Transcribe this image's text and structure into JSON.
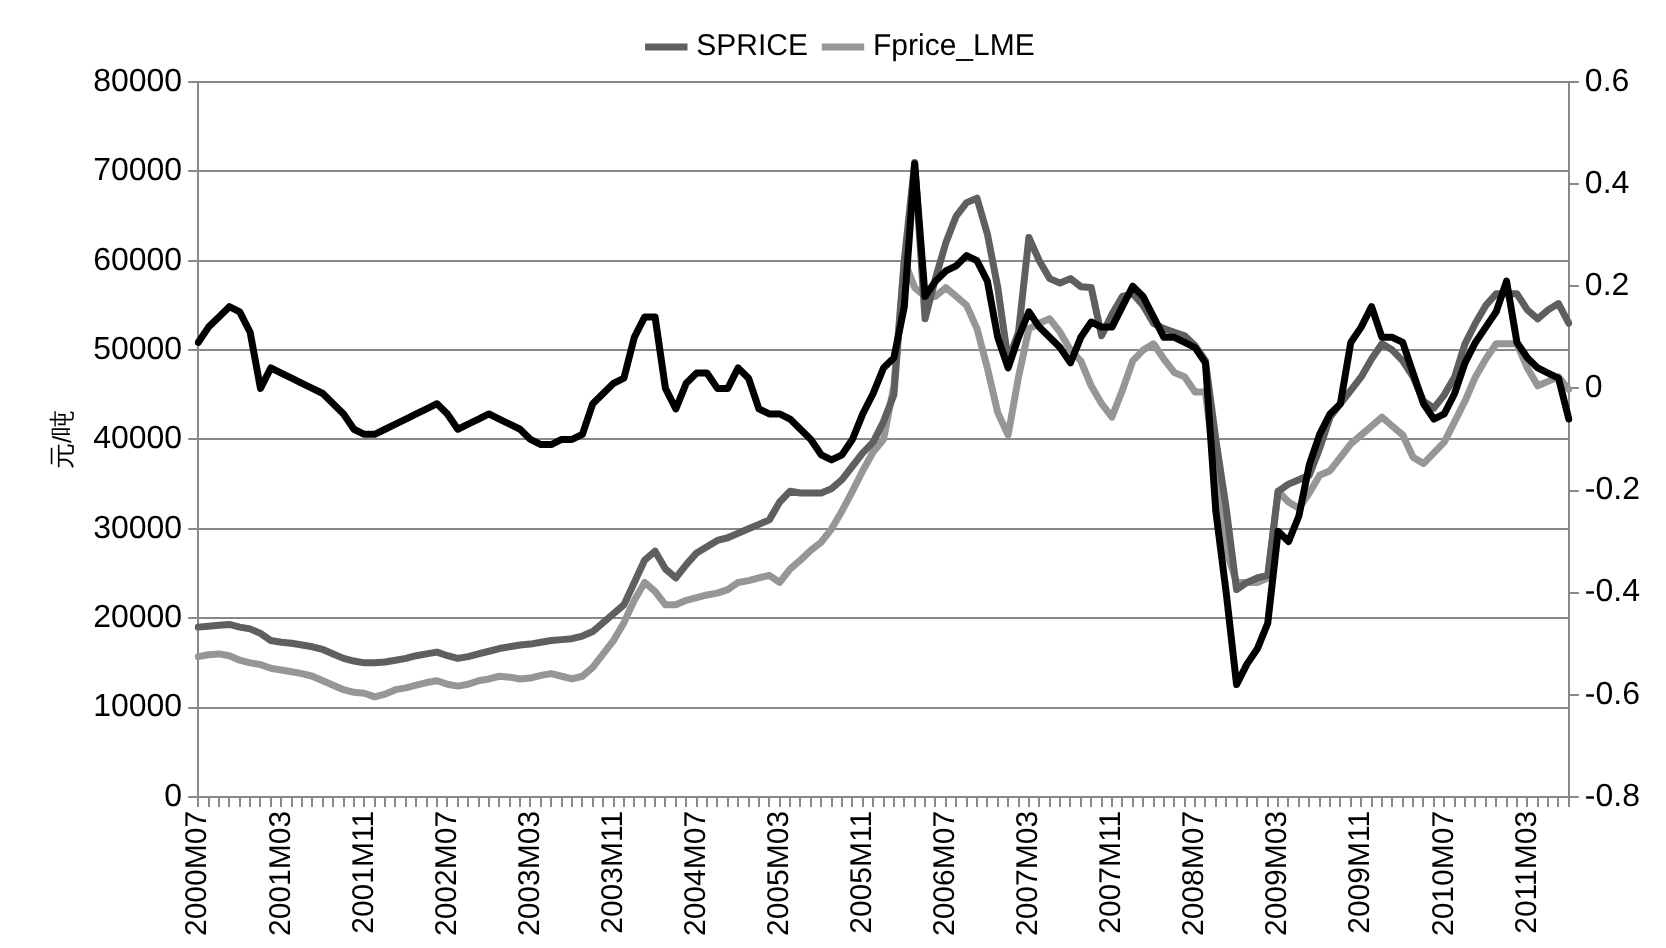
{
  "chart_data": {
    "type": "line",
    "ylabel": "元/吨",
    "categories": [
      "2000M07",
      null,
      null,
      null,
      null,
      null,
      null,
      null,
      "2001M03",
      null,
      null,
      null,
      null,
      null,
      null,
      null,
      "2001M11",
      null,
      null,
      null,
      null,
      null,
      null,
      null,
      "2002M07",
      null,
      null,
      null,
      null,
      null,
      null,
      null,
      "2003M03",
      null,
      null,
      null,
      null,
      null,
      null,
      null,
      "2003M11",
      null,
      null,
      null,
      null,
      null,
      null,
      null,
      "2004M07",
      null,
      null,
      null,
      null,
      null,
      null,
      null,
      "2005M03",
      null,
      null,
      null,
      null,
      null,
      null,
      null,
      "2005M11",
      null,
      null,
      null,
      null,
      null,
      null,
      null,
      "2006M07",
      null,
      null,
      null,
      null,
      null,
      null,
      null,
      "2007M03",
      null,
      null,
      null,
      null,
      null,
      null,
      null,
      "2007M11",
      null,
      null,
      null,
      null,
      null,
      null,
      null,
      "2008M07",
      null,
      null,
      null,
      null,
      null,
      null,
      null,
      "2009M03",
      null,
      null,
      null,
      null,
      null,
      null,
      null,
      "2009M11",
      null,
      null,
      null,
      null,
      null,
      null,
      null,
      "2010M07",
      null,
      null,
      null,
      null,
      null,
      null,
      null,
      "2011M03",
      null,
      null,
      null,
      null
    ],
    "series": [
      {
        "name": "SPRICE",
        "color": "#5f5f5f",
        "values": [
          19000,
          19100,
          19200,
          19300,
          19000,
          18800,
          18300,
          17500,
          17300,
          17200,
          17000,
          16800,
          16500,
          16000,
          15500,
          15200,
          15000,
          15000,
          15100,
          15300,
          15500,
          15800,
          16000,
          16200,
          15800,
          15500,
          15700,
          16000,
          16300,
          16600,
          16800,
          17000,
          17100,
          17300,
          17500,
          17600,
          17700,
          18000,
          18500,
          19500,
          20500,
          21500,
          24000,
          26500,
          27500,
          25500,
          24500,
          26000,
          27300,
          28000,
          28700,
          29000,
          29500,
          30000,
          30500,
          31000,
          33000,
          34200,
          34000,
          34000,
          34000,
          34500,
          35500,
          37000,
          38500,
          39700,
          42000,
          45000,
          60000,
          71000,
          53500,
          58000,
          62000,
          65000,
          66500,
          67000,
          63000,
          57000,
          48800,
          52000,
          62600,
          60000,
          58000,
          57500,
          58000,
          57100,
          57000,
          51600,
          54000,
          56000,
          56300,
          55000,
          53000,
          52400,
          52000,
          51600,
          50500,
          48800,
          40000,
          32300,
          23200,
          24000,
          24500,
          24800,
          34200,
          35000,
          35500,
          36000,
          39000,
          42500,
          44000,
          45500,
          47000,
          49000,
          50700,
          50000,
          48800,
          47000,
          44300,
          43500,
          45000,
          47000,
          50700,
          53000,
          55000,
          56300,
          56300,
          56300,
          54500,
          53500,
          54500,
          55200,
          53000
        ]
      },
      {
        "name": "Fprice_LME",
        "color": "#969696",
        "values": [
          15700,
          15900,
          16000,
          15800,
          15300,
          15000,
          14800,
          14400,
          14200,
          14000,
          13800,
          13500,
          13000,
          12500,
          12000,
          11700,
          11600,
          11200,
          11500,
          12000,
          12200,
          12500,
          12800,
          13000,
          12600,
          12400,
          12600,
          13000,
          13200,
          13500,
          13400,
          13200,
          13300,
          13600,
          13800,
          13500,
          13200,
          13500,
          14500,
          16000,
          17500,
          19500,
          22000,
          24000,
          23000,
          21500,
          21500,
          22000,
          22300,
          22600,
          22800,
          23200,
          24000,
          24200,
          24500,
          24800,
          24000,
          25500,
          26500,
          27600,
          28500,
          30000,
          32000,
          34200,
          36500,
          38600,
          40000,
          46000,
          60000,
          57000,
          56000,
          56000,
          57000,
          56000,
          55000,
          52400,
          48000,
          43000,
          40500,
          47000,
          52400,
          53000,
          53500,
          52000,
          50000,
          48800,
          46000,
          44000,
          42500,
          45500,
          48800,
          50000,
          50700,
          49000,
          47500,
          47000,
          45300,
          45300,
          36000,
          27600,
          24000,
          24000,
          24000,
          24500,
          34200,
          33000,
          32300,
          34000,
          36000,
          36500,
          38000,
          39500,
          40500,
          41500,
          42500,
          41500,
          40500,
          38000,
          37300,
          38500,
          39700,
          42000,
          44300,
          47000,
          49000,
          50700,
          50700,
          50700,
          48000,
          46000,
          46500,
          47000,
          45600
        ]
      },
      {
        "color": "#000000",
        "axis": "y2",
        "values": [
          0.09,
          0.12,
          0.14,
          0.16,
          0.15,
          0.11,
          0.0,
          0.04,
          0.03,
          0.02,
          0.01,
          0.0,
          -0.01,
          -0.03,
          -0.05,
          -0.08,
          -0.09,
          -0.09,
          -0.08,
          -0.07,
          -0.06,
          -0.05,
          -0.04,
          -0.03,
          -0.05,
          -0.08,
          -0.07,
          -0.06,
          -0.05,
          -0.06,
          -0.07,
          -0.08,
          -0.1,
          -0.11,
          -0.11,
          -0.1,
          -0.1,
          -0.09,
          -0.03,
          -0.01,
          0.01,
          0.02,
          0.1,
          0.14,
          0.14,
          0.0,
          -0.04,
          0.01,
          0.03,
          0.03,
          0.0,
          0.0,
          0.04,
          0.02,
          -0.04,
          -0.05,
          -0.05,
          -0.06,
          -0.08,
          -0.1,
          -0.13,
          -0.14,
          -0.13,
          -0.1,
          -0.05,
          -0.01,
          0.04,
          0.06,
          0.16,
          0.44,
          0.18,
          0.21,
          0.23,
          0.24,
          0.26,
          0.25,
          0.21,
          0.1,
          0.04,
          0.1,
          0.15,
          0.12,
          0.1,
          0.08,
          0.05,
          0.1,
          0.13,
          0.12,
          0.12,
          0.16,
          0.2,
          0.18,
          0.14,
          0.1,
          0.1,
          0.09,
          0.08,
          0.05,
          -0.24,
          -0.4,
          -0.58,
          -0.54,
          -0.51,
          -0.46,
          -0.28,
          -0.3,
          -0.25,
          -0.15,
          -0.09,
          -0.05,
          -0.03,
          0.09,
          0.12,
          0.16,
          0.1,
          0.1,
          0.09,
          0.03,
          -0.03,
          -0.06,
          -0.05,
          -0.01,
          0.05,
          0.09,
          0.12,
          0.15,
          0.21,
          0.09,
          0.06,
          0.04,
          0.03,
          0.02,
          -0.06
        ]
      }
    ],
    "ylim": [
      0,
      80000
    ],
    "yticks": [
      0,
      10000,
      20000,
      30000,
      40000,
      50000,
      60000,
      70000,
      80000
    ],
    "y2lim": [
      -0.8,
      0.6
    ],
    "y2ticks": [
      {
        "value": -0.8,
        "label": "-0.8"
      },
      {
        "value": -0.6,
        "label": "-0.6"
      },
      {
        "value": -0.4,
        "label": "-0.4"
      },
      {
        "value": -0.2,
        "label": "-0.2"
      },
      {
        "value": 0,
        "label": "0"
      },
      {
        "value": 0.2,
        "label": "0.2"
      },
      {
        "value": 0.4,
        "label": "0.4"
      },
      {
        "value": 0.6,
        "label": "0.6"
      }
    ],
    "grid": "y",
    "legend": "top",
    "marker": "none",
    "line_style": "solid"
  }
}
